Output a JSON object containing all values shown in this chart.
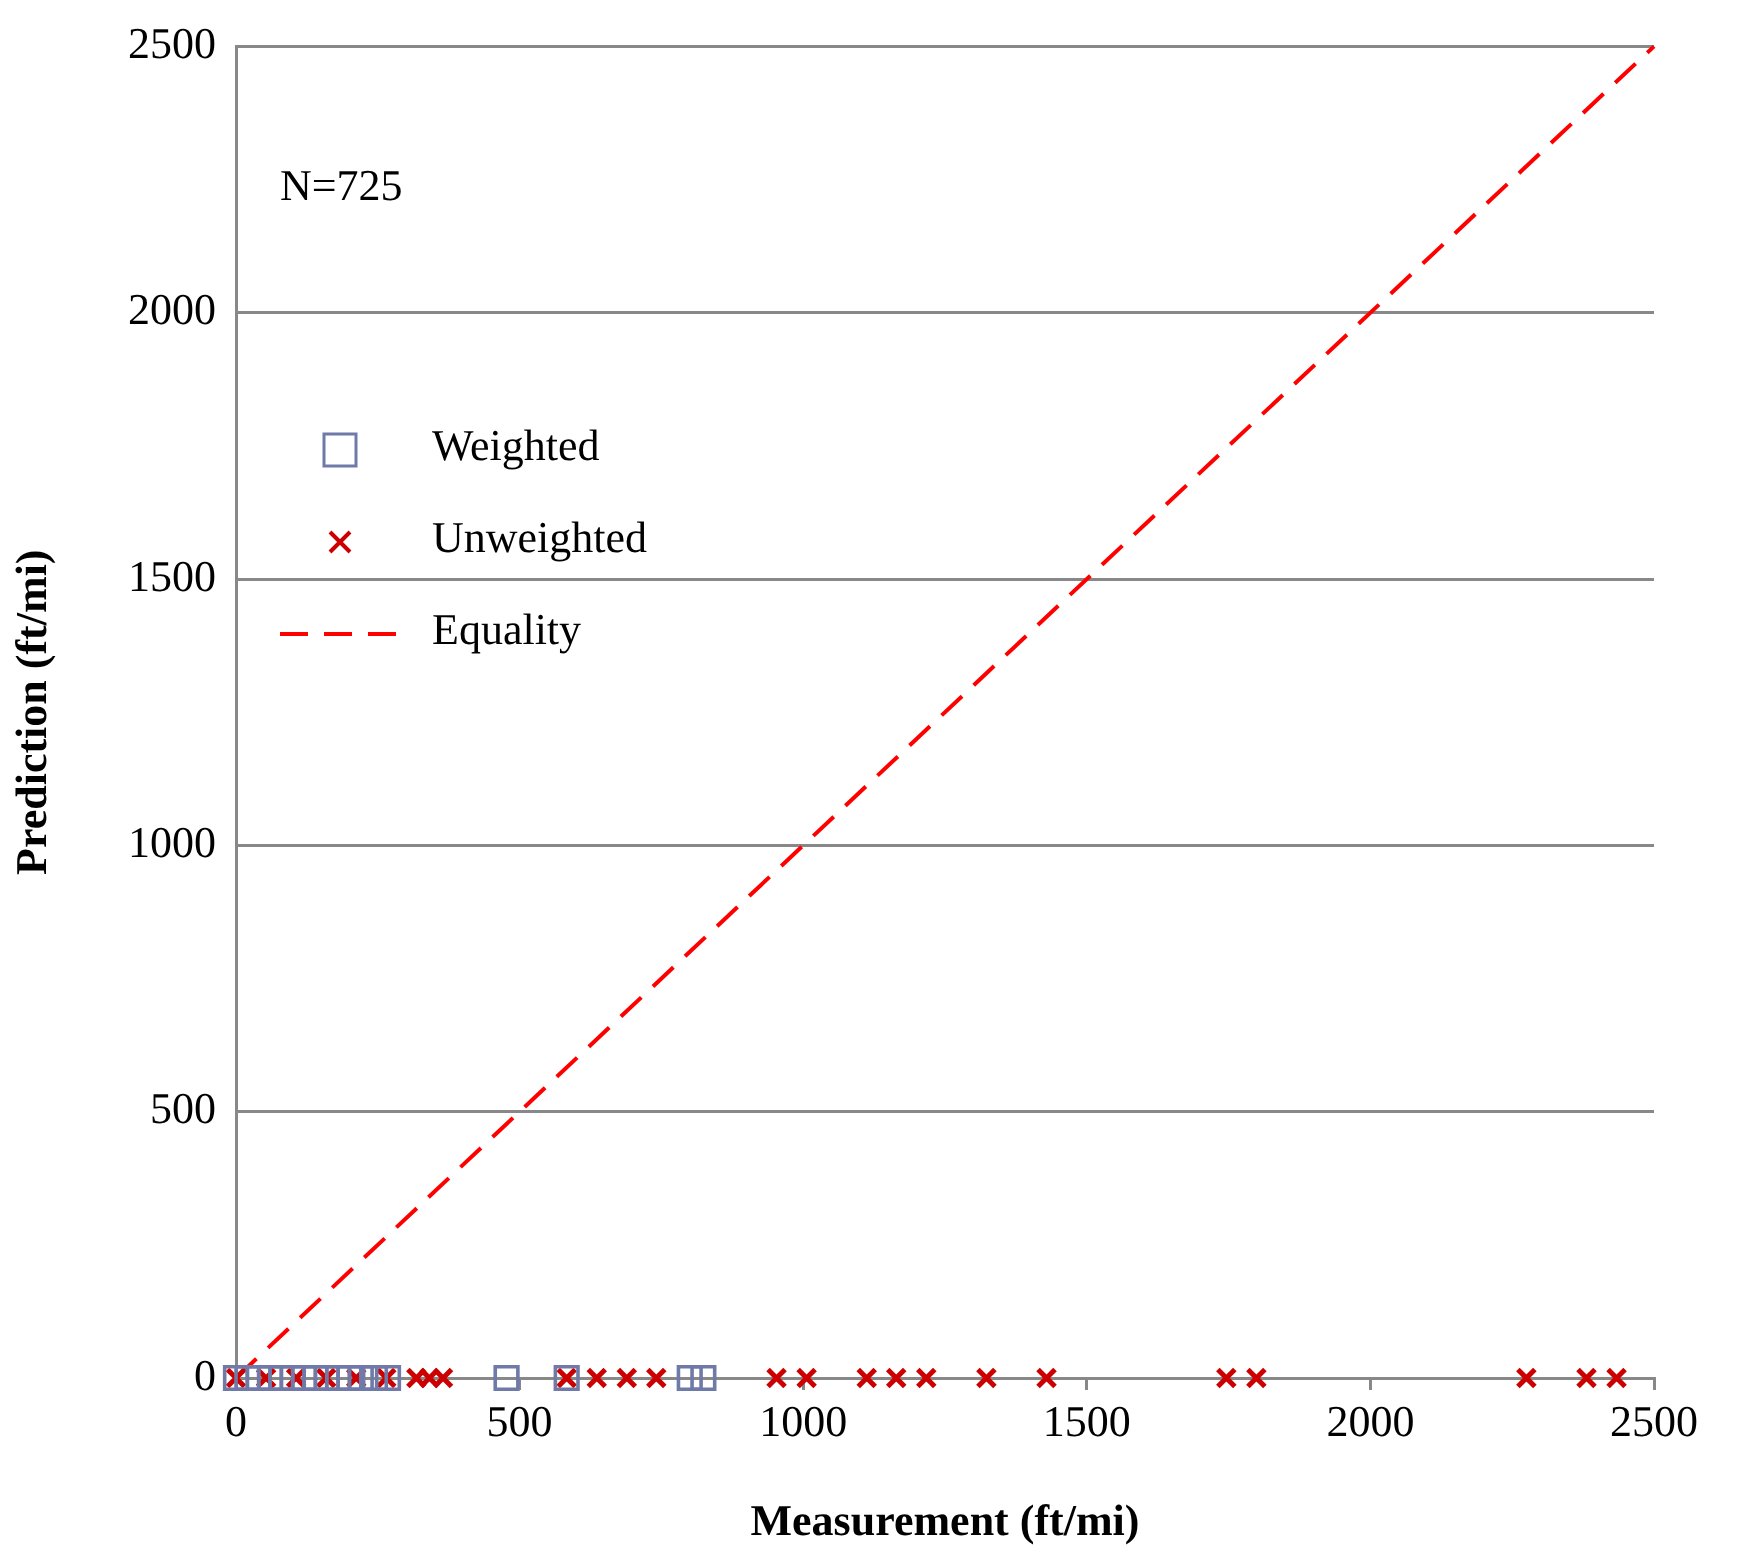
{
  "chart_data": {
    "type": "scatter",
    "xlabel": "Measurement (ft/mi)",
    "ylabel": "Prediction (ft/mi)",
    "xlim": [
      0,
      2500
    ],
    "ylim": [
      0,
      2500
    ],
    "xticks": [
      0,
      500,
      1000,
      1500,
      2000,
      2500
    ],
    "yticks": [
      0,
      500,
      1000,
      1500,
      2000,
      2500
    ],
    "grid": "y",
    "legend": "left",
    "annotations": [
      "N=725"
    ],
    "series": [
      {
        "name": "Weighted",
        "type": "scatter",
        "marker": "square",
        "color": "#6f7aa8",
        "x": [
          0,
          20,
          40,
          60,
          80,
          100,
          120,
          140,
          160,
          180,
          200,
          220,
          245,
          268,
          477,
          583,
          800,
          824
        ],
        "values": [
          0,
          0,
          0,
          0,
          0,
          0,
          0,
          0,
          0,
          0,
          0,
          0,
          0,
          0,
          0,
          0,
          0,
          0
        ]
      },
      {
        "name": "Unweighted",
        "type": "scatter",
        "marker": "cross",
        "color": "#cc0000",
        "x": [
          0,
          53,
          106,
          159,
          212,
          265,
          318,
          341,
          365,
          583,
          636,
          689,
          741,
          953,
          1006,
          1112,
          1164,
          1217,
          1323,
          1429,
          1746,
          1799,
          2275,
          2381,
          2434
        ],
        "values": [
          0,
          0,
          0,
          0,
          0,
          0,
          0,
          0,
          0,
          0,
          0,
          0,
          0,
          0,
          0,
          0,
          0,
          0,
          0,
          0,
          0,
          0,
          0,
          0,
          0
        ]
      },
      {
        "name": "Equality",
        "type": "line",
        "marker": "none",
        "line_style": "dashed",
        "color": "#ff0000",
        "x": [
          0,
          2500
        ],
        "values": [
          0,
          2500
        ]
      }
    ]
  }
}
